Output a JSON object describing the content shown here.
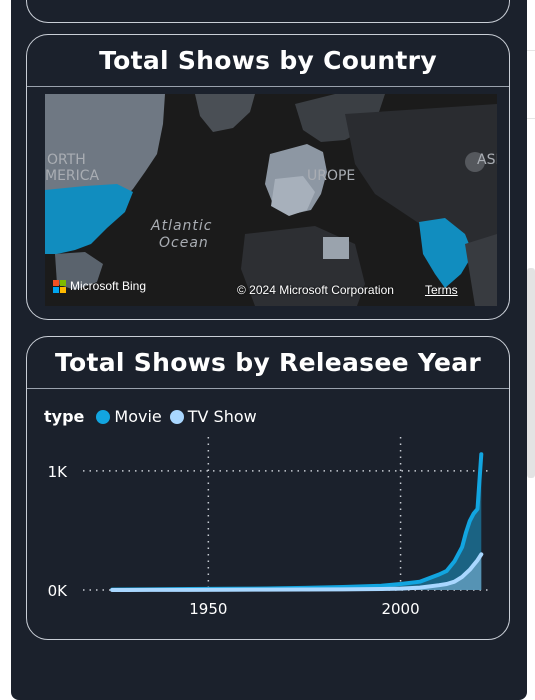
{
  "map_card": {
    "title": "Total Shows by Country",
    "labels": {
      "north_america_1": "ORTH",
      "north_america_2": "MERICA",
      "ocean_1": "Atlantic",
      "ocean_2": "Ocean",
      "europe": "UROPE",
      "asia": "ASI"
    },
    "bing_label": "Microsoft Bing",
    "copyright": "© 2024 Microsoft Corporation",
    "terms": "Terms",
    "highlight_color": "#118dbf"
  },
  "line_card": {
    "title": "Total Shows by Releasee Year",
    "legend_title": "type",
    "chart_data": {
      "type": "area",
      "x": [
        1925,
        1935,
        1945,
        1955,
        1965,
        1975,
        1985,
        1995,
        2000,
        2005,
        2010,
        2012,
        2014,
        2016,
        2017,
        2018,
        2019,
        2020,
        2021
      ],
      "series": [
        {
          "name": "Movie",
          "color": "#12a5e0",
          "values": [
            3,
            5,
            8,
            10,
            13,
            18,
            25,
            35,
            50,
            70,
            130,
            160,
            240,
            360,
            480,
            580,
            640,
            680,
            1140
          ]
        },
        {
          "name": "TV Show",
          "color": "#a9d7ff",
          "values": [
            0,
            1,
            1,
            2,
            3,
            4,
            5,
            8,
            12,
            20,
            40,
            50,
            70,
            110,
            140,
            170,
            210,
            250,
            300
          ]
        }
      ],
      "y_ticks": [
        {
          "value": 0,
          "label": "0K"
        },
        {
          "value": 1000,
          "label": "1K"
        }
      ],
      "x_ticks": [
        {
          "value": 1950,
          "label": "1950"
        },
        {
          "value": 2000,
          "label": "2000"
        }
      ],
      "xlim": [
        1920,
        2023
      ],
      "ylim": [
        0,
        1200
      ],
      "grid": "dotted"
    }
  }
}
